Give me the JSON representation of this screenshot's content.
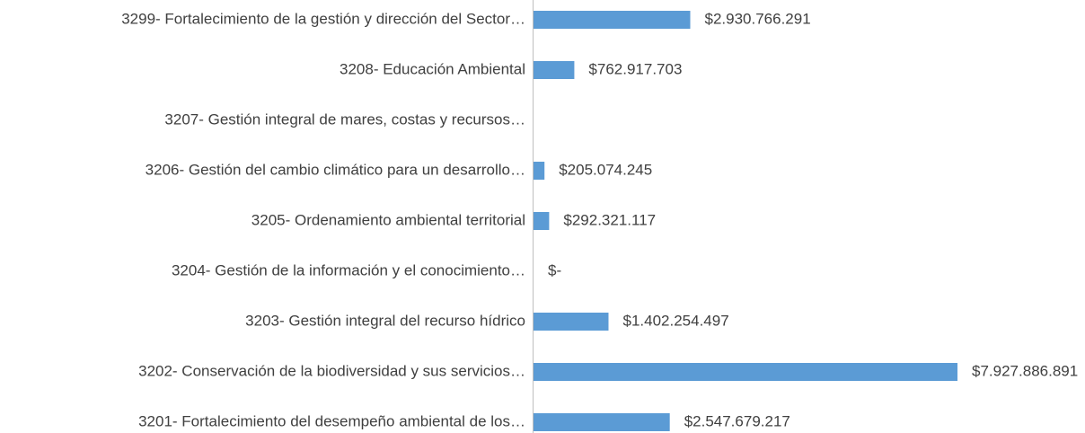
{
  "chart_data": {
    "type": "bar",
    "orientation": "horizontal",
    "categories": [
      "3299- Fortalecimiento de la gestión y dirección del Sector…",
      "3208- Educación Ambiental",
      "3207- Gestión integral de mares, costas y recursos…",
      "3206- Gestión del cambio climático para un desarrollo…",
      "3205- Ordenamiento ambiental territorial",
      "3204- Gestión de la información y el conocimiento…",
      "3203- Gestión integral del recurso hídrico",
      "3202- Conservación de la biodiversidad y sus servicios…",
      "3201- Fortalecimiento del desempeño ambiental de los…"
    ],
    "values": [
      2930766291,
      762917703,
      null,
      205074245,
      292321117,
      0,
      1402254497,
      7927886891,
      2547679217
    ],
    "value_labels": [
      "$2.930.766.291",
      "$762.917.703",
      null,
      "$205.074.245",
      "$292.321.117",
      "$-",
      "$1.402.254.497",
      "$7.927.886.891",
      "$2.547.679.217"
    ],
    "color": "#5b9bd5",
    "xlim": [
      0,
      10000000000
    ]
  }
}
